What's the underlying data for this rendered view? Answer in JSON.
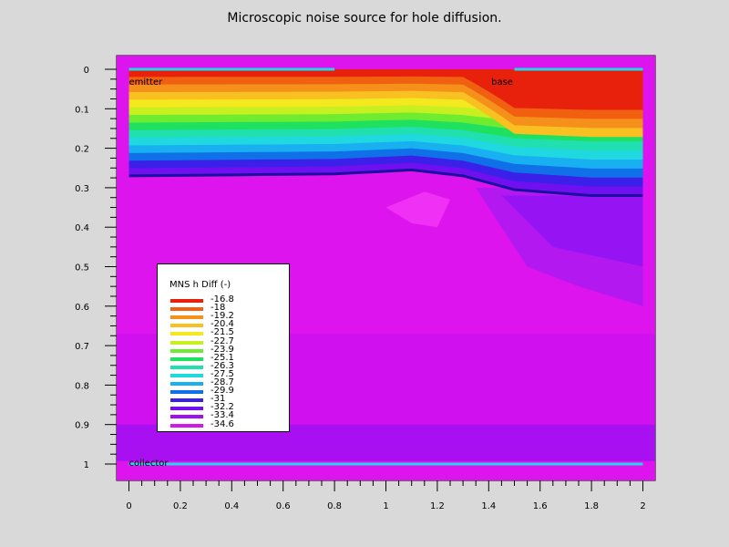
{
  "chart_data": {
    "type": "heatmap",
    "title": "Microscopic noise source for hole diffusion.",
    "xlabel": "",
    "ylabel": "",
    "xlim": [
      0,
      2
    ],
    "ylim": [
      1,
      0
    ],
    "x_ticks": [
      "0",
      "0.2",
      "0.4",
      "0.6",
      "0.8",
      "1",
      "1.2",
      "1.4",
      "1.6",
      "1.8",
      "2"
    ],
    "y_ticks": [
      "0",
      "0.1",
      "0.2",
      "0.3",
      "0.4",
      "0.5",
      "0.6",
      "0.7",
      "0.8",
      "0.9",
      "1"
    ],
    "colorbar": {
      "title": "MNS h Diff (-)",
      "levels": [
        "-16.8",
        "-18",
        "-19.2",
        "-20.4",
        "-21.5",
        "-22.7",
        "-23.9",
        "-25.1",
        "-26.3",
        "-27.5",
        "-28.7",
        "-29.9",
        "-31",
        "-32.2",
        "-33.4",
        "-34.6"
      ],
      "colors": [
        "#e8210c",
        "#f06010",
        "#f5901a",
        "#f8c020",
        "#f4e81e",
        "#c8f020",
        "#70ec30",
        "#20e060",
        "#20e0b0",
        "#20d8e0",
        "#18b0f0",
        "#1070e8",
        "#3a20e8",
        "#7010f0",
        "#a010f0",
        "#d418e8"
      ],
      "position": "lower-left inset"
    },
    "annotations": [
      {
        "text": "emitter",
        "x": 0.0,
        "y": 0.03
      },
      {
        "text": "base",
        "x": 1.41,
        "y": 0.03
      },
      {
        "text": "collector",
        "x": 0.0,
        "y": 0.995
      }
    ],
    "contacts": [
      {
        "name": "emitter",
        "x_range": [
          0,
          0.8
        ],
        "y": 0
      },
      {
        "name": "base",
        "x_range": [
          1.5,
          2.0
        ],
        "y": 0
      },
      {
        "name": "collector",
        "x_range": [
          0,
          2.0
        ],
        "y": 1
      }
    ],
    "junction_profile": [
      {
        "x": 0.0,
        "y": 0.27
      },
      {
        "x": 0.8,
        "y": 0.265
      },
      {
        "x": 1.1,
        "y": 0.255
      },
      {
        "x": 1.3,
        "y": 0.27
      },
      {
        "x": 1.5,
        "y": 0.305
      },
      {
        "x": 1.8,
        "y": 0.32
      },
      {
        "x": 2.0,
        "y": 0.32
      }
    ],
    "grid": false
  }
}
